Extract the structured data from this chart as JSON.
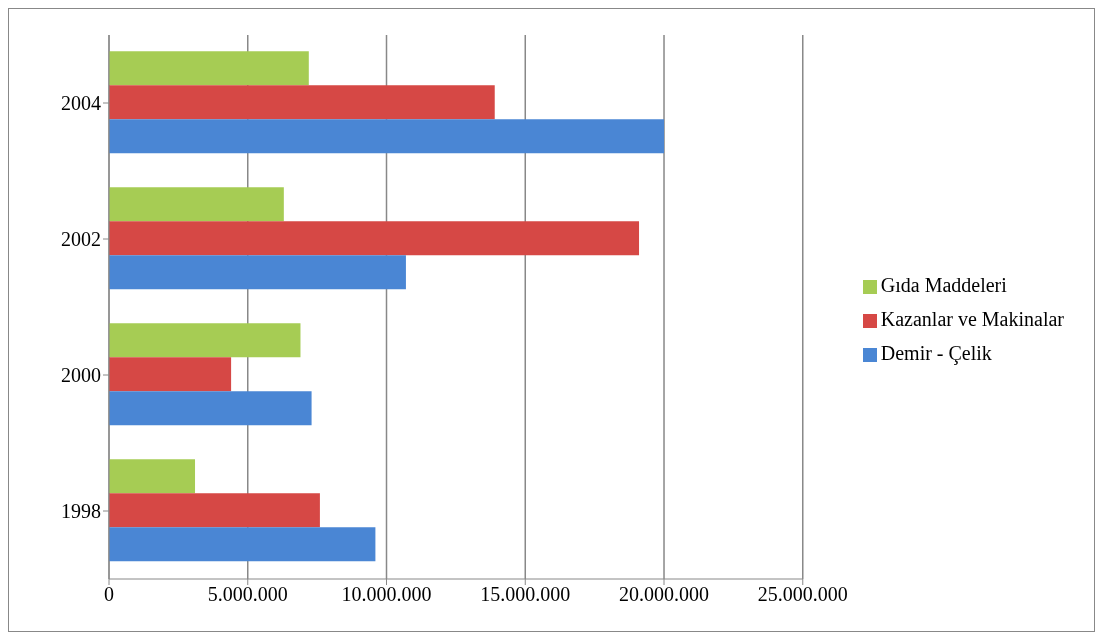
{
  "chart_data": {
    "type": "bar",
    "orientation": "horizontal",
    "categories": [
      "2004",
      "2002",
      "2000",
      "1998"
    ],
    "series": [
      {
        "name": "Gıda Maddeleri",
        "color": "#a6cc54",
        "values": [
          7200000,
          6300000,
          6900000,
          3100000
        ]
      },
      {
        "name": "Kazanlar ve Makinalar",
        "color": "#d64845",
        "values": [
          13900000,
          19100000,
          4400000,
          7600000
        ]
      },
      {
        "name": "Demir - Çelik",
        "color": "#4a86d4",
        "values": [
          20000000,
          10700000,
          7300000,
          9600000
        ]
      }
    ],
    "xlim": [
      0,
      25000000
    ],
    "xticks": [
      0,
      {
        "value": 5000000,
        "label": "5.000.000"
      },
      {
        "value": 10000000,
        "label": "10.000.000"
      },
      {
        "value": 15000000,
        "label": "15.000.000"
      },
      {
        "value": 20000000,
        "label": "20.000.000"
      },
      {
        "value": 25000000,
        "label": "25.000.000"
      }
    ],
    "grid": "x",
    "legend": "right"
  }
}
